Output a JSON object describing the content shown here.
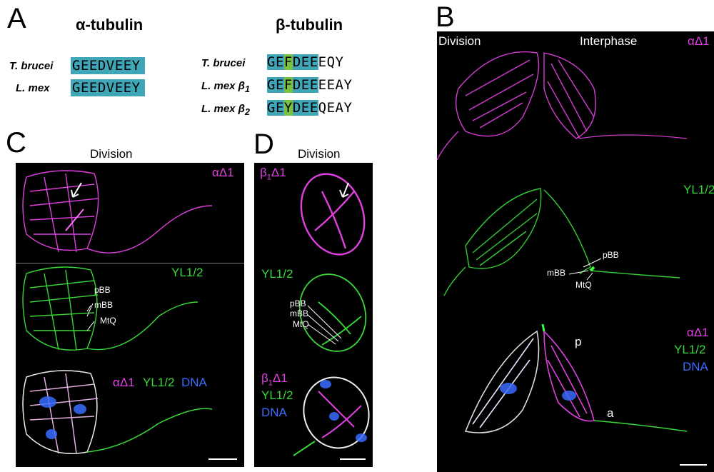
{
  "panel_letters": {
    "a": "A",
    "b": "B",
    "c": "C",
    "d": "D"
  },
  "panelA": {
    "alpha_heading": "α-tubulin",
    "beta_heading": "β-tubulin",
    "alpha_rows": [
      {
        "species": "T. brucei",
        "seq": "GEEDVEEY"
      },
      {
        "species": "L. mex",
        "seq": "GEEDVEEY"
      }
    ],
    "beta_rows": [
      {
        "species": "T. brucei",
        "sub": "",
        "pre": "GE",
        "hl": "F",
        "mid": "DEE",
        "tail": "EQY"
      },
      {
        "species": "L. mex β",
        "sub": "1",
        "pre": "GE",
        "hl": "F",
        "mid": "DEE",
        "tail": "EEAY"
      },
      {
        "species": "L. mex β",
        "sub": "2",
        "pre": "GE",
        "hl": "Y",
        "mid": "DEE",
        "tail": "QEAY"
      }
    ]
  },
  "panelB": {
    "left_title": "Division",
    "right_title": "Interphase",
    "alpha_label": "αΔ1",
    "yl_label": "YL1/2",
    "pBB": "pBB",
    "mBB": "mBB",
    "MtQ": "MtQ",
    "merge_alpha": "αΔ1",
    "merge_yl": "YL1/2",
    "merge_dna": "DNA",
    "p": "p",
    "a": "a"
  },
  "panelC": {
    "title": "Division",
    "alpha_label": "αΔ1",
    "yl_label": "YL1/2",
    "pBB": "pBB",
    "mBB": "mBB",
    "MtQ": "MtQ",
    "merge_alpha": "αΔ1",
    "merge_yl": "YL1/2",
    "merge_dna": "DNA"
  },
  "panelD": {
    "title": "Division",
    "beta_label": "β",
    "beta_sub": "1",
    "beta_rest": "Δ1",
    "yl_label": "YL1/2",
    "pBB": "pBB",
    "mBB": "mBB",
    "MtQ": "MtQ",
    "merge_beta": "β",
    "merge_beta_sub": "1",
    "merge_beta_rest": "Δ1",
    "merge_yl": "YL1/2",
    "merge_dna": "DNA"
  },
  "colors": {
    "magenta": "#e040e0",
    "green": "#38d838",
    "blue": "#3a6cff",
    "teal": "#3fa6b8",
    "highlight": "#79c043"
  }
}
